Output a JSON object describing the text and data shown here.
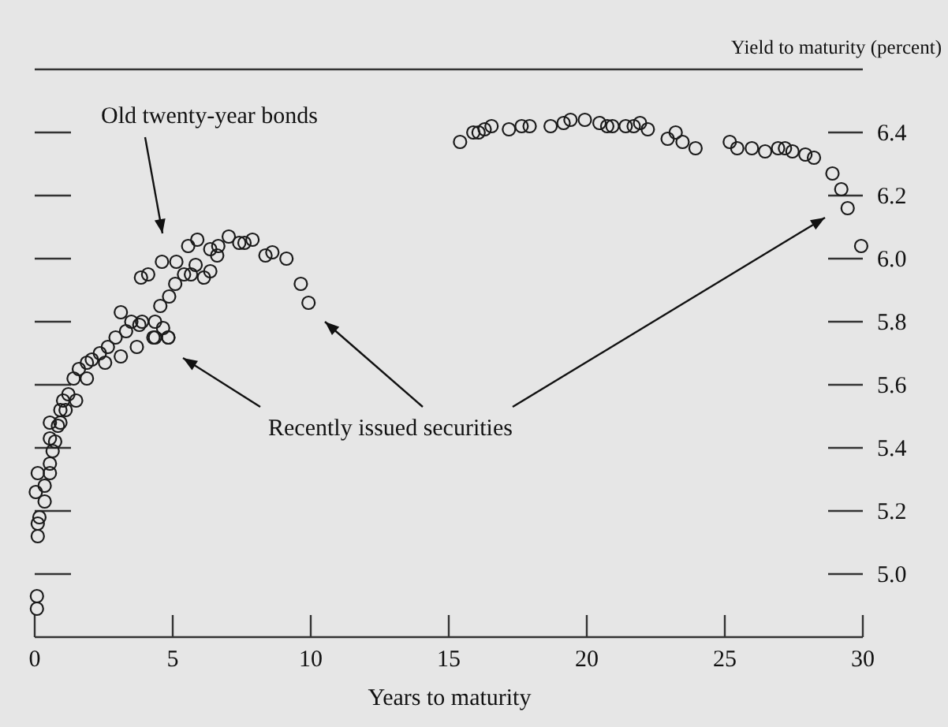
{
  "chart_data": {
    "type": "scatter",
    "xlabel": "Years to maturity",
    "ylabel": "Yield to maturity (percent)",
    "annotations": [
      "Old twenty-year bonds",
      "Recently issued securities"
    ],
    "xlim": [
      0,
      30
    ],
    "xticks": [
      0,
      5,
      10,
      15,
      20,
      25,
      30
    ],
    "ylim": [
      4.8,
      6.6
    ],
    "yticks": [
      {
        "value": 5,
        "label": "5.0"
      },
      5.2,
      5.4,
      5.6,
      5.8,
      {
        "value": 6,
        "label": "6.0"
      },
      6.2,
      6.4
    ],
    "grid": false,
    "marker": "circle",
    "series": [
      {
        "color": "#1a1a1a",
        "x": [
          0.08,
          0.08,
          0.11,
          0.11,
          0.17,
          0.04,
          0.11,
          0.36,
          0.36,
          0.55,
          0.55,
          0.65,
          0.55,
          0.74,
          0.84,
          0.55,
          0.93,
          0.93,
          1.03,
          1.12,
          1.22,
          1.41,
          1.5,
          1.6,
          1.89,
          1.89,
          2.07,
          2.36,
          2.55,
          2.65,
          2.93,
          3.12,
          3.12,
          3.31,
          3.5,
          3.7,
          3.79,
          3.89,
          4.3,
          4.36,
          4.36,
          4.65,
          4.84,
          4.84,
          3.85,
          4.11,
          4.55,
          4.61,
          4.87,
          5.09,
          5.13,
          5.41,
          5.56,
          5.66,
          5.83,
          5.89,
          6.13,
          6.36,
          6.36,
          6.61,
          6.65,
          7.03,
          7.41,
          7.6,
          7.89,
          8.36,
          8.61,
          9.12,
          9.64,
          9.92,
          15.41,
          15.89,
          16.08,
          16.3,
          16.55,
          17.18,
          17.64,
          17.93,
          18.69,
          19.16,
          19.41,
          19.93,
          20.46,
          20.74,
          20.93,
          21.41,
          21.7,
          21.93,
          22.21,
          22.93,
          23.22,
          23.47,
          23.94,
          25.18,
          25.45,
          25.98,
          26.46,
          26.93,
          27.18,
          27.45,
          27.92,
          28.23,
          28.9,
          29.22,
          29.45,
          29.94
        ],
        "values": [
          4.93,
          4.89,
          5.12,
          5.16,
          5.18,
          5.26,
          5.32,
          5.23,
          5.28,
          5.32,
          5.35,
          5.39,
          5.43,
          5.42,
          5.47,
          5.48,
          5.48,
          5.52,
          5.55,
          5.52,
          5.57,
          5.62,
          5.55,
          5.65,
          5.67,
          5.62,
          5.68,
          5.7,
          5.67,
          5.72,
          5.75,
          5.69,
          5.83,
          5.77,
          5.8,
          5.72,
          5.79,
          5.8,
          5.75,
          5.8,
          5.75,
          5.78,
          5.75,
          5.75,
          5.94,
          5.95,
          5.85,
          5.99,
          5.88,
          5.92,
          5.99,
          5.95,
          6.04,
          5.95,
          5.98,
          6.06,
          5.94,
          6.03,
          5.96,
          6.01,
          6.04,
          6.07,
          6.05,
          6.05,
          6.06,
          6.01,
          6.02,
          6.0,
          5.92,
          5.86,
          6.37,
          6.4,
          6.4,
          6.41,
          6.42,
          6.41,
          6.42,
          6.42,
          6.42,
          6.43,
          6.44,
          6.44,
          6.43,
          6.42,
          6.42,
          6.42,
          6.42,
          6.43,
          6.41,
          6.38,
          6.4,
          6.37,
          6.35,
          6.37,
          6.35,
          6.35,
          6.34,
          6.35,
          6.35,
          6.34,
          6.33,
          6.32,
          6.27,
          6.22,
          6.16,
          6.04
        ]
      }
    ]
  }
}
